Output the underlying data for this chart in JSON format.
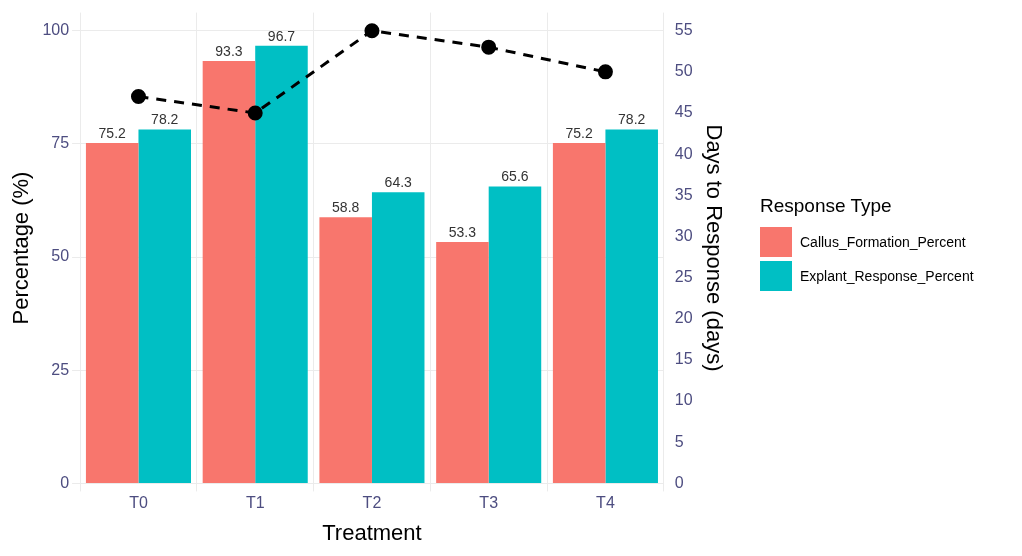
{
  "chart_data": {
    "type": "bar",
    "xlabel": "Treatment",
    "ylabel": "Percentage (%)",
    "y2label": "Days to Response (days)",
    "legend_title": "Response Type",
    "categories": [
      "T0",
      "T1",
      "T2",
      "T3",
      "T4"
    ],
    "series": [
      {
        "name": "Callus_Formation_Percent",
        "color": "#f8766d",
        "values": [
          75.2,
          93.3,
          58.8,
          53.3,
          75.2
        ],
        "value_labels": [
          "75.2",
          "93.3",
          "58.8",
          "53.3",
          "75.2"
        ]
      },
      {
        "name": "Explant_Response_Percent",
        "color": "#00bfc4",
        "values": [
          78.2,
          96.7,
          64.3,
          65.6,
          78.2
        ],
        "value_labels": [
          "78.2",
          "96.7",
          "64.3",
          "65.6",
          "78.2"
        ]
      },
      {
        "type": "line",
        "axis": "y2",
        "color": "#000000",
        "values": [
          47,
          45,
          55,
          53,
          50
        ]
      }
    ],
    "ylim": [
      0,
      104
    ],
    "yticks": [
      0,
      25,
      50,
      75,
      100
    ],
    "y2lim": [
      0,
      57.2
    ],
    "y2ticks": [
      0,
      5,
      10,
      15,
      20,
      25,
      30,
      35,
      40,
      45,
      50,
      55
    ],
    "grid": true,
    "legend": "right",
    "marker": "circle",
    "line_style": "dashed"
  }
}
